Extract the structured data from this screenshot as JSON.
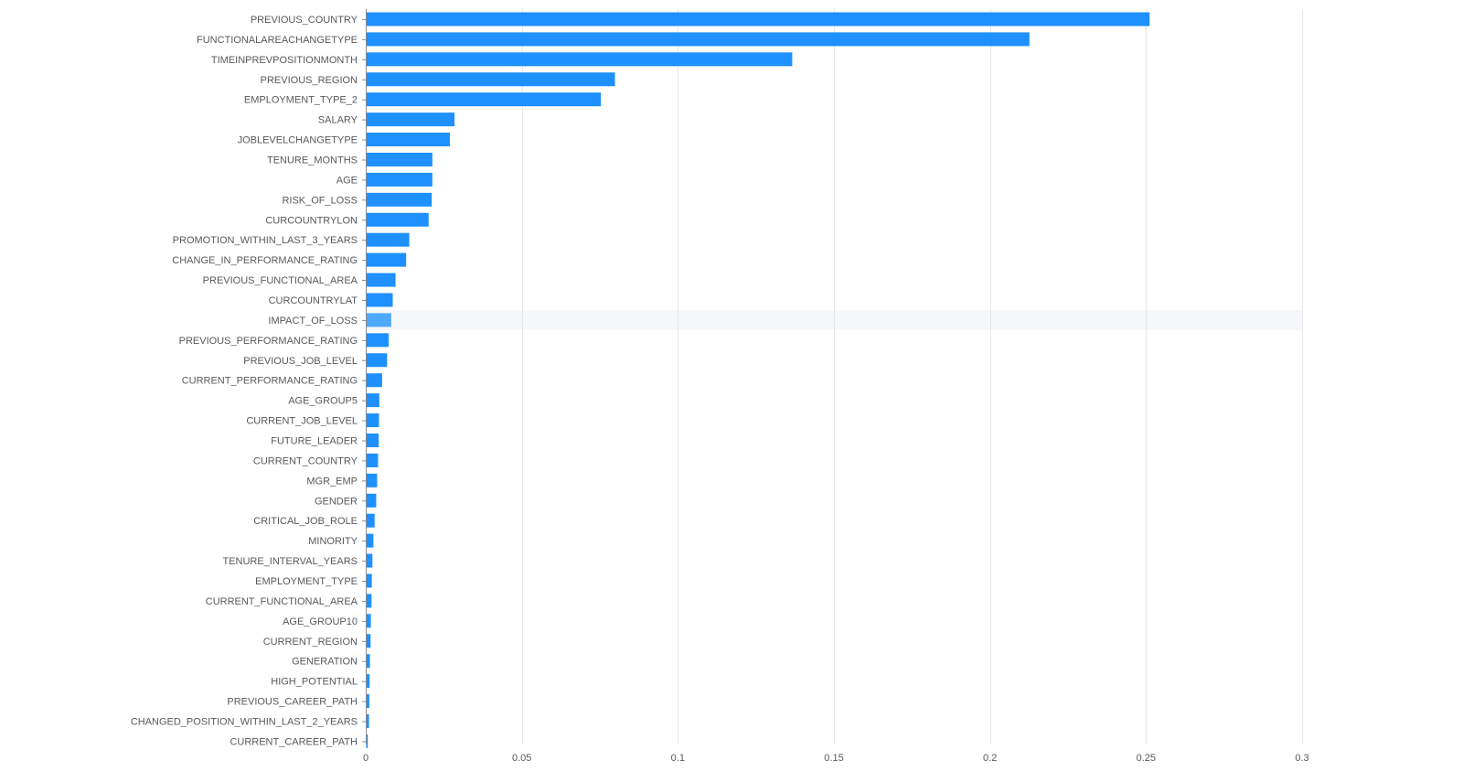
{
  "chart_data": {
    "type": "bar",
    "orientation": "horizontal",
    "title": "",
    "xlabel": "",
    "ylabel": "",
    "xlim": [
      0,
      0.3
    ],
    "x_ticks": [
      "0",
      "0.05",
      "0.1",
      "0.15",
      "0.2",
      "0.25",
      "0.3"
    ],
    "x_tick_values": [
      0,
      0.05,
      0.1,
      0.15,
      0.2,
      0.25,
      0.3
    ],
    "grid": true,
    "legend": "none",
    "highlighted_category": "IMPACT_OF_LOSS",
    "categories": [
      "PREVIOUS_COUNTRY",
      "FUNCTIONALAREACHANGETYPE",
      "TIMEINPREVPOSITIONMONTH",
      "PREVIOUS_REGION",
      "EMPLOYMENT_TYPE_2",
      "SALARY",
      "JOBLEVELCHANGETYPE",
      "TENURE_MONTHS",
      "AGE",
      "RISK_OF_LOSS",
      "CURCOUNTRYLON",
      "PROMOTION_WITHIN_LAST_3_YEARS",
      "CHANGE_IN_PERFORMANCE_RATING",
      "PREVIOUS_FUNCTIONAL_AREA",
      "CURCOUNTRYLAT",
      "IMPACT_OF_LOSS",
      "PREVIOUS_PERFORMANCE_RATING",
      "PREVIOUS_JOB_LEVEL",
      "CURRENT_PERFORMANCE_RATING",
      "AGE_GROUP5",
      "CURRENT_JOB_LEVEL",
      "FUTURE_LEADER",
      "CURRENT_COUNTRY",
      "MGR_EMP",
      "GENDER",
      "CRITICAL_JOB_ROLE",
      "MINORITY",
      "TENURE_INTERVAL_YEARS",
      "EMPLOYMENT_TYPE",
      "CURRENT_FUNCTIONAL_AREA",
      "AGE_GROUP10",
      "CURRENT_REGION",
      "GENERATION",
      "HIGH_POTENTIAL",
      "PREVIOUS_CAREER_PATH",
      "CHANGED_POSITION_WITHIN_LAST_2_YEARS",
      "CURRENT_CAREER_PATH"
    ],
    "values": [
      0.251,
      0.2125,
      0.1365,
      0.0797,
      0.0752,
      0.0283,
      0.0268,
      0.0212,
      0.0212,
      0.021,
      0.02,
      0.0138,
      0.0128,
      0.0094,
      0.0085,
      0.008,
      0.0072,
      0.0067,
      0.0051,
      0.0042,
      0.0041,
      0.004,
      0.0038,
      0.0035,
      0.0032,
      0.0027,
      0.0023,
      0.002,
      0.0018,
      0.0017,
      0.0015,
      0.0014,
      0.0012,
      0.0011,
      0.001,
      0.0009,
      0.0005
    ],
    "colors": {
      "bar": "#1e90ff",
      "bar_highlight": "#4ea8fb",
      "highlight_band": "#f5f7fa"
    }
  }
}
